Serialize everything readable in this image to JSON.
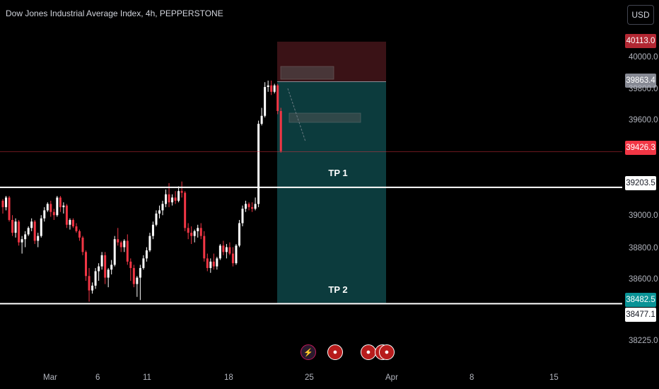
{
  "header": {
    "title": "Dow Jones Industrial Average Index, 4h, PEPPERSTONE",
    "currency": "USD"
  },
  "colors": {
    "up": "#ffffff",
    "down": "#f23645",
    "target_zone": "#0c3b3d",
    "stop_zone": "#3a1216",
    "price_line": "#f23645"
  },
  "price_tags": {
    "stop": "40113.0",
    "entry": "39863.4",
    "current": "39426.3",
    "tp1_line": "39203.5",
    "target": "38482.5",
    "tp2_line": "38477.1"
  },
  "y_axis": {
    "ticks": [
      "40000.0",
      "39800.0",
      "39600.0",
      "39000.0",
      "38800.0",
      "38600.0",
      "38225.0"
    ]
  },
  "x_axis": {
    "ticks": [
      "Mar",
      "6",
      "11",
      "18",
      "25",
      "Apr",
      "8",
      "15"
    ]
  },
  "annotations": {
    "tp1": "TP 1",
    "tp2": "TP 2"
  },
  "events": [
    "lightning-icon",
    "us-flag-icon",
    "us-flag-icon",
    "us-flag-icon",
    "us-flag-icon"
  ],
  "chart_data": {
    "type": "candlestick",
    "symbol": "Dow Jones Industrial Average Index",
    "interval": "4h",
    "ylim": [
      38225,
      40160
    ],
    "candles": [
      [
        39120,
        39130,
        39040,
        39080
      ],
      [
        39080,
        39150,
        39060,
        39140
      ],
      [
        39140,
        39150,
        38990,
        39000
      ],
      [
        39000,
        39030,
        38900,
        38920
      ],
      [
        38920,
        39010,
        38890,
        38990
      ],
      [
        38990,
        39000,
        38840,
        38860
      ],
      [
        38860,
        38900,
        38790,
        38880
      ],
      [
        38880,
        38930,
        38830,
        38910
      ],
      [
        38910,
        38960,
        38900,
        38950
      ],
      [
        38950,
        39010,
        38930,
        38990
      ],
      [
        38990,
        39000,
        38850,
        38870
      ],
      [
        38870,
        38920,
        38830,
        38900
      ],
      [
        38900,
        39030,
        38890,
        39010
      ],
      [
        39010,
        39080,
        38990,
        39060
      ],
      [
        39060,
        39110,
        39050,
        39100
      ],
      [
        39100,
        39120,
        39020,
        39050
      ],
      [
        39050,
        39070,
        39000,
        39030
      ],
      [
        39030,
        39150,
        39020,
        39140
      ],
      [
        39140,
        39150,
        39050,
        39080
      ],
      [
        39080,
        39110,
        39040,
        39090
      ],
      [
        39090,
        39100,
        38950,
        38970
      ],
      [
        38970,
        39010,
        38940,
        39000
      ],
      [
        39000,
        39010,
        38950,
        38960
      ],
      [
        38960,
        38980,
        38920,
        38930
      ],
      [
        38930,
        38940,
        38870,
        38890
      ],
      [
        38890,
        38900,
        38780,
        38800
      ],
      [
        38800,
        38810,
        38620,
        38650
      ],
      [
        38650,
        38700,
        38490,
        38560
      ],
      [
        38560,
        38610,
        38540,
        38590
      ],
      [
        38590,
        38700,
        38570,
        38680
      ],
      [
        38680,
        38730,
        38620,
        38710
      ],
      [
        38710,
        38800,
        38690,
        38780
      ],
      [
        38780,
        38800,
        38600,
        38640
      ],
      [
        38640,
        38700,
        38580,
        38690
      ],
      [
        38690,
        38750,
        38660,
        38720
      ],
      [
        38720,
        38900,
        38710,
        38880
      ],
      [
        38880,
        38950,
        38840,
        38860
      ],
      [
        38860,
        38870,
        38800,
        38830
      ],
      [
        38830,
        38880,
        38800,
        38870
      ],
      [
        38870,
        38910,
        38720,
        38740
      ],
      [
        38740,
        38760,
        38620,
        38700
      ],
      [
        38700,
        38720,
        38580,
        38600
      ],
      [
        38600,
        38650,
        38520,
        38640
      ],
      [
        38640,
        38720,
        38500,
        38700
      ],
      [
        38700,
        38780,
        38690,
        38760
      ],
      [
        38760,
        38830,
        38740,
        38810
      ],
      [
        38810,
        38920,
        38800,
        38900
      ],
      [
        38900,
        38990,
        38880,
        38970
      ],
      [
        38970,
        39060,
        38960,
        39040
      ],
      [
        39040,
        39090,
        39010,
        39060
      ],
      [
        39060,
        39120,
        39030,
        39100
      ],
      [
        39100,
        39190,
        39080,
        39160
      ],
      [
        39160,
        39230,
        39080,
        39110
      ],
      [
        39110,
        39160,
        39090,
        39140
      ],
      [
        39140,
        39180,
        39100,
        39120
      ],
      [
        39120,
        39210,
        39110,
        39180
      ],
      [
        39180,
        39240,
        39140,
        39170
      ],
      [
        39170,
        39180,
        38930,
        38950
      ],
      [
        38950,
        38980,
        38880,
        38920
      ],
      [
        38920,
        38960,
        38850,
        38900
      ],
      [
        38900,
        38940,
        38860,
        38930
      ],
      [
        38930,
        38970,
        38890,
        38950
      ],
      [
        38950,
        38980,
        38880,
        38900
      ],
      [
        38900,
        38930,
        38740,
        38760
      ],
      [
        38760,
        38790,
        38680,
        38700
      ],
      [
        38700,
        38760,
        38670,
        38740
      ],
      [
        38740,
        38790,
        38690,
        38710
      ],
      [
        38710,
        38770,
        38690,
        38760
      ],
      [
        38760,
        38850,
        38750,
        38840
      ],
      [
        38840,
        38870,
        38780,
        38800
      ],
      [
        38800,
        38850,
        38760,
        38830
      ],
      [
        38830,
        38860,
        38780,
        38790
      ],
      [
        38790,
        38830,
        38710,
        38730
      ],
      [
        38730,
        38850,
        38720,
        38840
      ],
      [
        38840,
        39000,
        38830,
        38980
      ],
      [
        38980,
        39090,
        38960,
        39070
      ],
      [
        39070,
        39120,
        39050,
        39100
      ],
      [
        39100,
        39110,
        39060,
        39080
      ],
      [
        39080,
        39110,
        39050,
        39070
      ],
      [
        39070,
        39140,
        39060,
        39100
      ],
      [
        39100,
        39620,
        39080,
        39600
      ],
      [
        39600,
        39700,
        39590,
        39650
      ],
      [
        39650,
        39860,
        39640,
        39830
      ],
      [
        39830,
        39870,
        39800,
        39840
      ],
      [
        39840,
        39870,
        39780,
        39800
      ],
      [
        39800,
        39850,
        39790,
        39840
      ],
      [
        39840,
        39850,
        39660,
        39680
      ],
      [
        39680,
        39700,
        39420,
        39430
      ]
    ],
    "position": {
      "type": "short",
      "stop": 40113.0,
      "entry": 39863.4,
      "target": 38482.5
    },
    "horizontal_lines": [
      39203.5,
      38477.1
    ],
    "current_price": 39426.3
  }
}
